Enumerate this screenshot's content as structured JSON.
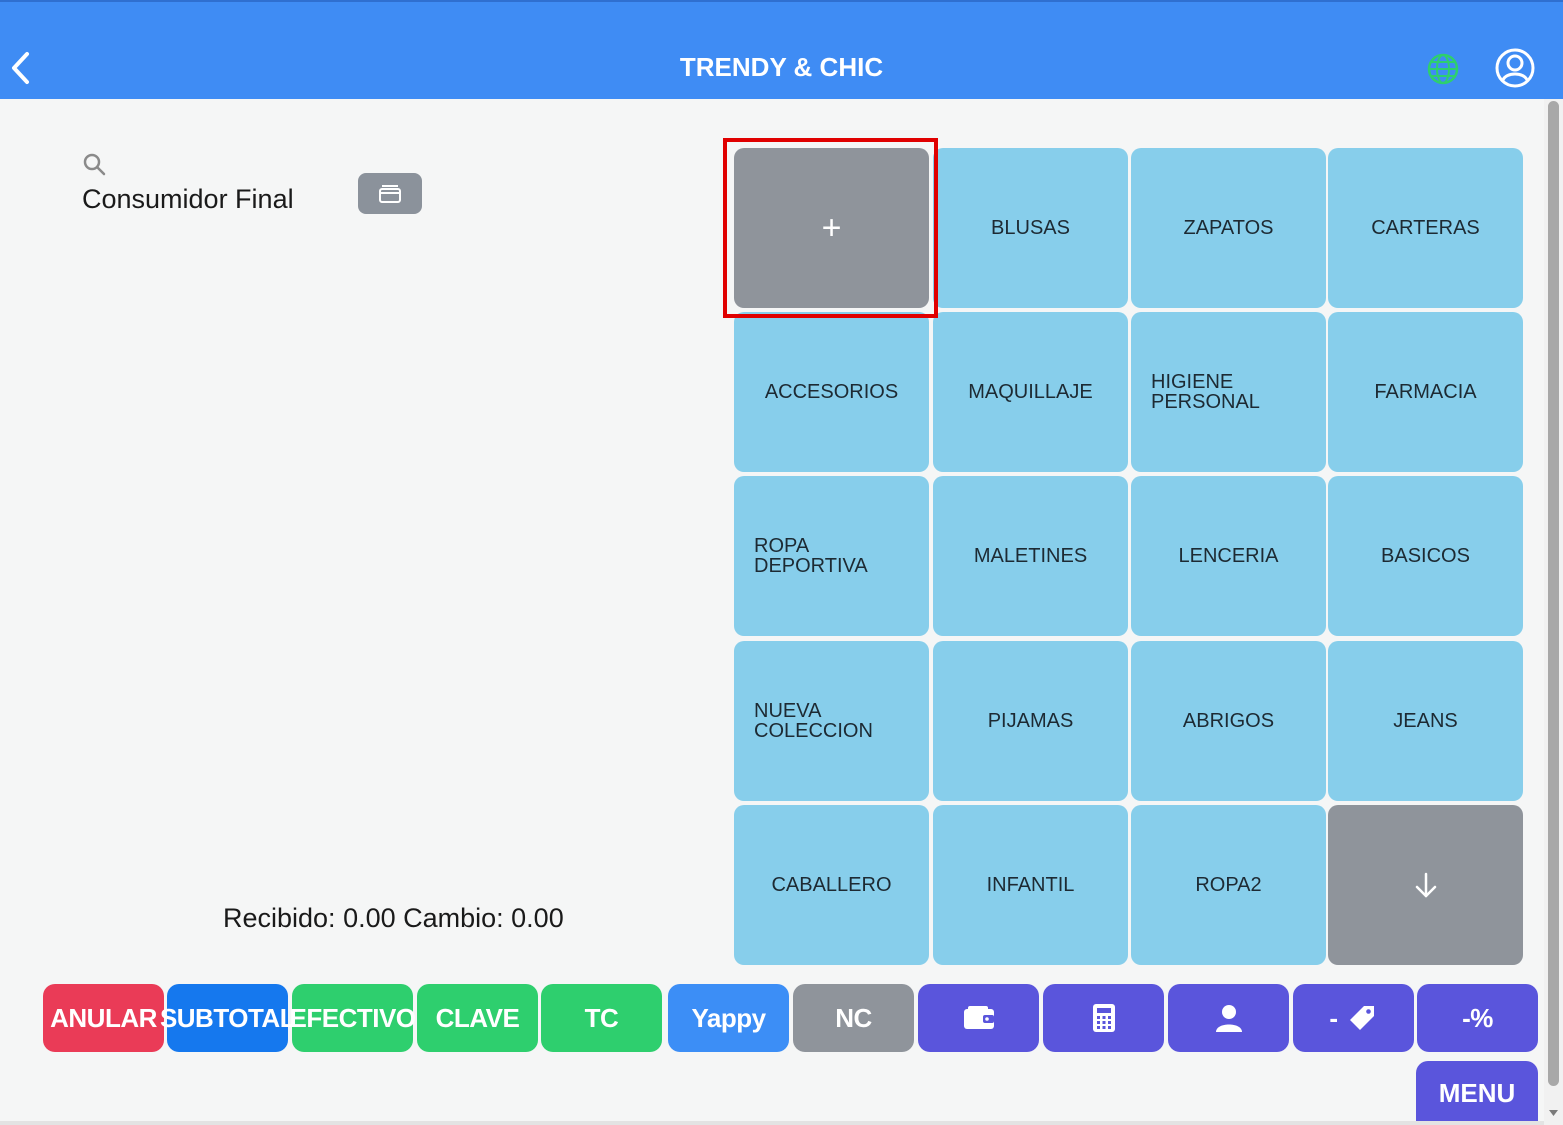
{
  "header": {
    "title": "TRENDY & CHIC",
    "back_icon": "chevron-left-icon",
    "globe_icon": "globe-icon",
    "account_icon": "user-circle-icon",
    "globe_color": "#2ecf6e"
  },
  "customer": {
    "search_icon": "search-icon",
    "name": "Consumidor Final",
    "drawer_icon": "cash-drawer-icon"
  },
  "totals": {
    "text": "Recibido: 0.00 Cambio: 0.00"
  },
  "grid": {
    "add_label": "+",
    "more_icon": "arrow-down-icon",
    "categories": [
      "BLUSAS",
      "ZAPATOS",
      "CARTERAS",
      "ACCESORIOS",
      "MAQUILLAJE",
      "HIGIENE PERSONAL",
      "FARMACIA",
      "ROPA DEPORTIVA",
      "MALETINES",
      "LENCERIA",
      "BASICOS",
      "NUEVA COLECCION",
      "PIJAMAS",
      "ABRIGOS",
      "JEANS",
      "CABALLERO",
      "INFANTIL",
      "ROPA2"
    ]
  },
  "bottom_bar": {
    "anular": "ANULAR",
    "subtotal": "SUBTOTAL",
    "efectivo": "EFECTIVO",
    "clave": "CLAVE",
    "tc": "TC",
    "yappy": "Yappy",
    "nc": "NC",
    "wallet_icon": "wallet-icon",
    "calculator_icon": "calculator-icon",
    "user_icon": "user-icon",
    "discount_tag_label": "-",
    "discount_tag_icon": "tag-icon",
    "percent_discount": "-%",
    "menu": "MENU"
  },
  "colors": {
    "header": "#3f8cf4",
    "tile": "#87ceeb",
    "tile_gray": "#8f949b",
    "highlight": "#e00000",
    "anular": "#ea3b57",
    "subtotal": "#1578ee",
    "green": "#2ecf6e",
    "yappy": "#3c8ef6",
    "purple": "#5a55dc"
  }
}
